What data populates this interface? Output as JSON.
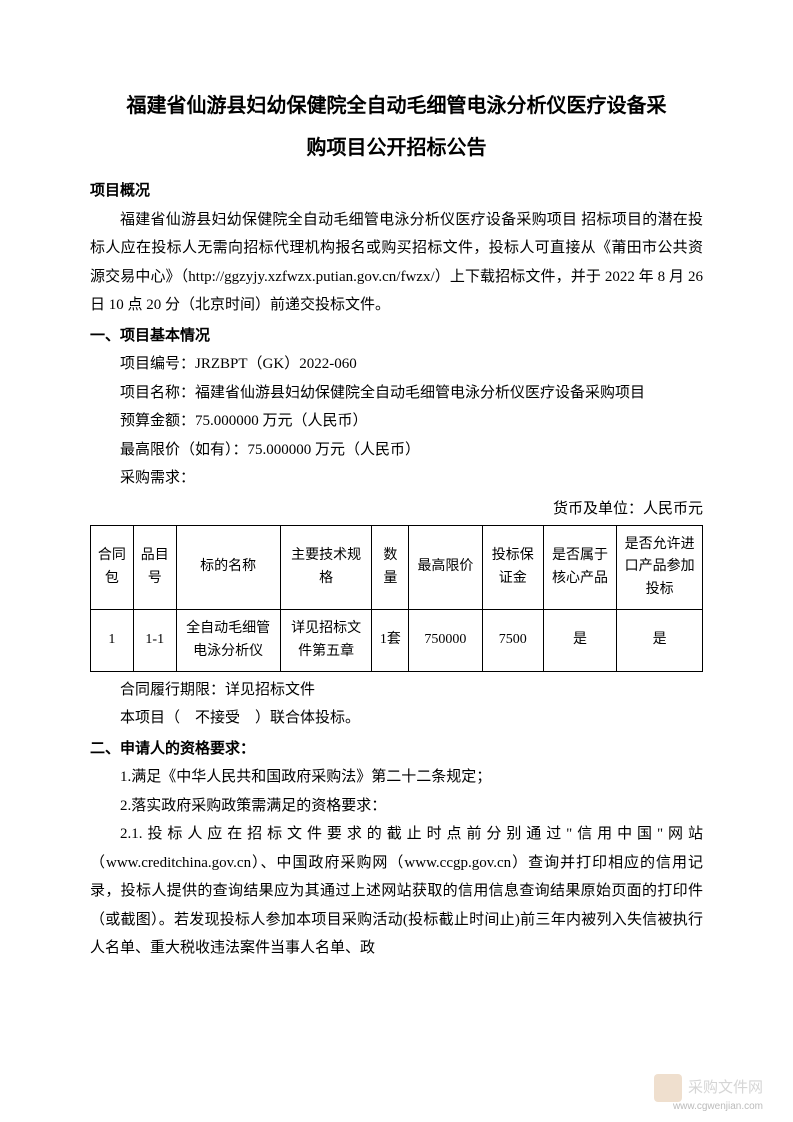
{
  "title_line1": "福建省仙游县妇幼保健院全自动毛细管电泳分析仪医疗设备采",
  "title_line2": "购项目公开招标公告",
  "overview_heading": "项目概况",
  "overview_para": "福建省仙游县妇幼保健院全自动毛细管电泳分析仪医疗设备采购项目 招标项目的潜在投标人应在投标人无需向招标代理机构报名或购买招标文件，投标人可直接从《莆田市公共资源交易中心》（http://ggzyjy.xzfwzx.putian.gov.cn/fwzx/）上下载招标文件，并于 2022 年 8 月 26 日 10 点 20 分（北京时间）前递交投标文件。",
  "section1_heading": "一、项目基本情况",
  "project_number_label": "项目编号：",
  "project_number": "JRZBPT（GK）2022-060",
  "project_name_label": "项目名称：",
  "project_name": "福建省仙游县妇幼保健院全自动毛细管电泳分析仪医疗设备采购项目",
  "budget_label": "预算金额：",
  "budget": "75.000000 万元（人民币）",
  "max_price_label": "最高限价（如有）：",
  "max_price": "75.000000 万元（人民币）",
  "purchase_demand_label": "采购需求：",
  "currency_note": "货币及单位：人民币元",
  "table": {
    "headers": [
      "合同包",
      "品目号",
      "标的名称",
      "主要技术规格",
      "数量",
      "最高限价",
      "投标保证金",
      "是否属于核心产品",
      "是否允许进口产品参加投标"
    ],
    "rows": [
      [
        "1",
        "1-1",
        "全自动毛细管电泳分析仪",
        "详见招标文件第五章",
        "1套",
        "750000",
        "7500",
        "是",
        "是"
      ]
    ]
  },
  "contract_period": "合同履行期限：详见招标文件",
  "consortium": "本项目（　不接受　）联合体投标。",
  "section2_heading": "二、申请人的资格要求：",
  "req1": "1.满足《中华人民共和国政府采购法》第二十二条规定；",
  "req2": "2.落实政府采购政策需满足的资格要求：",
  "req21": "2.1.投标人应在招标文件要求的截止时点前分别通过\"信用中国\"网站（www.creditchina.gov.cn）、中国政府采购网（www.ccgp.gov.cn）查询并打印相应的信用记录，投标人提供的查询结果应为其通过上述网站获取的信用信息查询结果原始页面的打印件（或截图）。若发现投标人参加本项目采购活动(投标截止时间止)前三年内被列入失信被执行人名单、重大税收违法案件当事人名单、政",
  "watermark_text": "采购文件网",
  "watermark_url": "www.cgwenjian.com"
}
